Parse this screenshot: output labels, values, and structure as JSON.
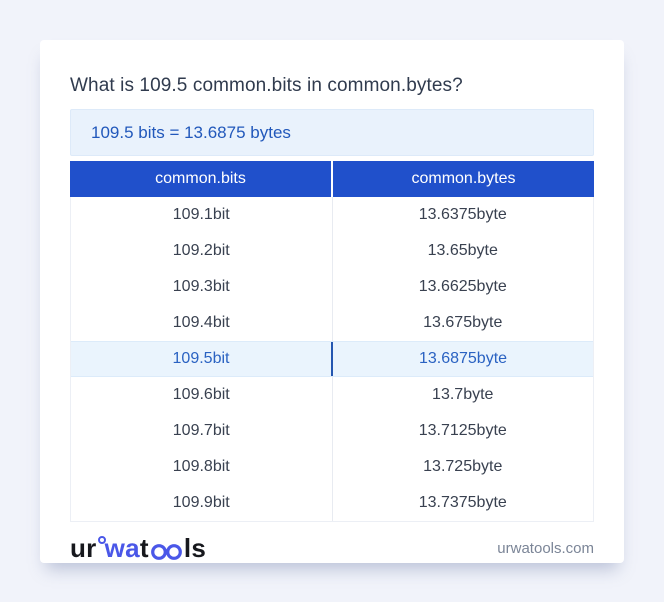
{
  "header": {
    "title": "What is 109.5 common.bits in common.bytes?",
    "result": "109.5 bits = 13.6875 bytes"
  },
  "table": {
    "headers": [
      "common.bits",
      "common.bytes"
    ],
    "rows": [
      {
        "bits": "109.1bit",
        "bytes": "13.6375byte",
        "highlight": false
      },
      {
        "bits": "109.2bit",
        "bytes": "13.65byte",
        "highlight": false
      },
      {
        "bits": "109.3bit",
        "bytes": "13.6625byte",
        "highlight": false
      },
      {
        "bits": "109.4bit",
        "bytes": "13.675byte",
        "highlight": false
      },
      {
        "bits": "109.5bit",
        "bytes": "13.6875byte",
        "highlight": true
      },
      {
        "bits": "109.6bit",
        "bytes": "13.7byte",
        "highlight": false
      },
      {
        "bits": "109.7bit",
        "bytes": "13.7125byte",
        "highlight": false
      },
      {
        "bits": "109.8bit",
        "bytes": "13.725byte",
        "highlight": false
      },
      {
        "bits": "109.9bit",
        "bytes": "13.7375byte",
        "highlight": false
      }
    ]
  },
  "footer": {
    "logo_parts": {
      "ur": "ur",
      "wa": "wa",
      "t": "t",
      "ls": "ls"
    },
    "site": "urwatools.com"
  },
  "colors": {
    "page_bg": "#f1f3fa",
    "header_blue": "#2050cb",
    "result_bg": "#e9f2fc",
    "result_text": "#2158bb",
    "highlight_bg": "#eaf4fd",
    "highlight_text": "#2a62c2",
    "highlight_divider": "#2456b0",
    "row_text": "#394150",
    "logo_blue": "#4a57e8",
    "site_text": "#7b8597"
  }
}
